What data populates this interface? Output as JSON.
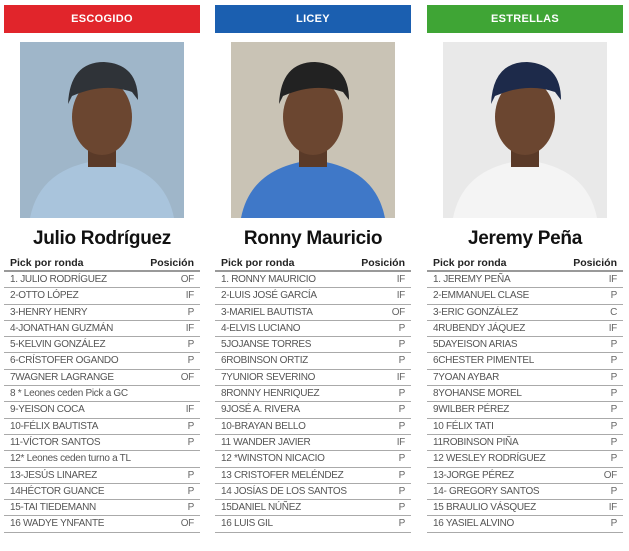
{
  "columns": [
    {
      "team": "ESCOGIDO",
      "color": "#e1252b",
      "player": "Julio Rodríguez",
      "photo_bg": "#9fb6c9",
      "jersey": "#a9c4dc",
      "cap": "#2f3338",
      "header_pick": "Pick por ronda",
      "header_pos": "Posición",
      "rows": [
        [
          "1. JULIO RODRÍGUEZ",
          "OF"
        ],
        [
          "2-OTTO LÓPEZ",
          "IF"
        ],
        [
          "3-HENRY HENRY",
          "P"
        ],
        [
          "4-JONATHAN GUZMÁN",
          "IF"
        ],
        [
          "5-KELVIN GONZÁLEZ",
          "P"
        ],
        [
          "6-CRÍSTOFER OGANDO",
          "P"
        ],
        [
          "7WAGNER LAGRANGE",
          "OF"
        ],
        [
          "8 * Leones ceden Pick a GC",
          ""
        ],
        [
          "9-YEISON COCA",
          "IF"
        ],
        [
          "10-FÉLIX BAUTISTA",
          "P"
        ],
        [
          "11-VÍCTOR SANTOS",
          "P"
        ],
        [
          "12* Leones ceden turno a TL",
          ""
        ],
        [
          "13-JESÚS LINAREZ",
          "P"
        ],
        [
          "14HÉCTOR GUANCE",
          "P"
        ],
        [
          "15-TAI TIEDEMANN",
          "P"
        ],
        [
          "16 WADYE YNFANTE",
          "OF"
        ]
      ]
    },
    {
      "team": "LICEY",
      "color": "#1b5fb0",
      "player": "Ronny Mauricio",
      "photo_bg": "#c9c3b5",
      "jersey": "#3f78c8",
      "cap": "#222",
      "header_pick": "Pick por ronda",
      "header_pos": "Posición",
      "rows": [
        [
          "1. RONNY MAURICIO",
          "IF"
        ],
        [
          "2-LUIS JOSÉ GARCÍA",
          "IF"
        ],
        [
          "3-MARIEL BAUTISTA",
          "OF"
        ],
        [
          "4-ELVIS LUCIANO",
          "P"
        ],
        [
          "5JOJANSE TORRES",
          "P"
        ],
        [
          "6ROBINSON ORTIZ",
          "P"
        ],
        [
          "7YUNIOR SEVERINO",
          "IF"
        ],
        [
          "8RONNY HENRIQUEZ",
          "P"
        ],
        [
          "9JOSÉ A. RIVERA",
          "P"
        ],
        [
          "10-BRAYAN BELLO",
          "P"
        ],
        [
          "11 WANDER JAVIER",
          "IF"
        ],
        [
          "12 *WINSTON NICACIO",
          "P"
        ],
        [
          "13 CRISTOFER MELÉNDEZ",
          "P"
        ],
        [
          "14 JOSÍAS DE LOS SANTOS",
          "P"
        ],
        [
          "15DANIEL NÚÑEZ",
          "P"
        ],
        [
          "16 LUIS GIL",
          "P"
        ]
      ]
    },
    {
      "team": "ESTRELLAS",
      "color": "#3fa535",
      "player": "Jeremy Peña",
      "photo_bg": "#e9e9e9",
      "jersey": "#f4f4f4",
      "cap": "#1d2a4a",
      "header_pick": "Pick por ronda",
      "header_pos": "Posición",
      "rows": [
        [
          "1. JEREMY PEÑA",
          "IF"
        ],
        [
          "2-EMMANUEL CLASE",
          "P"
        ],
        [
          "3-ERIC GONZÁLEZ",
          "C"
        ],
        [
          "4RUBENDY JÁQUEZ",
          "IF"
        ],
        [
          "5DAYEISON ARIAS",
          "P"
        ],
        [
          "6CHESTER PIMENTEL",
          "P"
        ],
        [
          "7YOAN AYBAR",
          "P"
        ],
        [
          "8YOHANSE MOREL",
          "P"
        ],
        [
          "9WILBER PÉREZ",
          "P"
        ],
        [
          "10 FÉLIX TATI",
          "P"
        ],
        [
          "11ROBINSON PIÑA",
          "P"
        ],
        [
          "12 WESLEY RODRÍGUEZ",
          "P"
        ],
        [
          "13-JORGE PÉREZ",
          "OF"
        ],
        [
          "14- GREGORY SANTOS",
          "P"
        ],
        [
          "15 BRAULIO VÁSQUEZ",
          "IF"
        ],
        [
          "16 YASIEL ALVINO",
          "P"
        ]
      ]
    }
  ]
}
